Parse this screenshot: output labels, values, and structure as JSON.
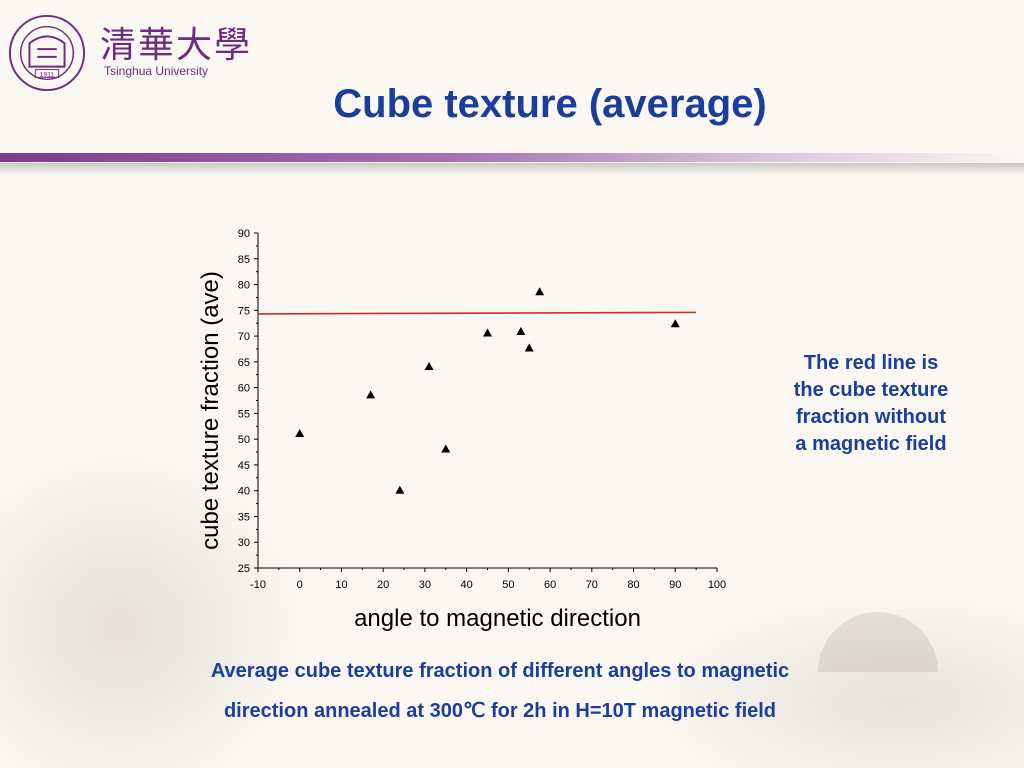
{
  "header": {
    "logo_text_cn": "清華大學",
    "logo_text_en": "Tsinghua University",
    "seal_year": "1911",
    "seal_ring_text": "TSINGHUA UNIVERSITY",
    "title": "Cube texture (average)"
  },
  "note": {
    "lines": [
      "The red line is",
      "the cube texture",
      "fraction without",
      "a magnetic field"
    ]
  },
  "caption": {
    "line1": "Average cube texture fraction of different angles to  magnetic",
    "line2": "direction annealed at 300℃ for  2h in H=10T magnetic field"
  },
  "colors": {
    "title": "#1b3d9c",
    "accent_purple": "#7d3b8e",
    "reference_line": "#d22b2b",
    "marker": "#000000"
  },
  "chart_data": {
    "type": "scatter",
    "title": "",
    "xlabel": "angle to magnetic direction",
    "ylabel": "cube texture fraction (ave)",
    "xlim": [
      -10,
      100
    ],
    "ylim": [
      25,
      90
    ],
    "x_ticks": [
      -10,
      0,
      10,
      20,
      30,
      40,
      50,
      60,
      70,
      80,
      90,
      100
    ],
    "y_ticks": [
      25,
      30,
      35,
      40,
      45,
      50,
      55,
      60,
      65,
      70,
      75,
      80,
      85,
      90
    ],
    "grid": false,
    "marker": "triangle",
    "points": [
      {
        "x": 0,
        "y": 51
      },
      {
        "x": 17,
        "y": 58.5
      },
      {
        "x": 24,
        "y": 40
      },
      {
        "x": 31,
        "y": 64
      },
      {
        "x": 35,
        "y": 48
      },
      {
        "x": 45,
        "y": 70.5
      },
      {
        "x": 53,
        "y": 70.8
      },
      {
        "x": 55,
        "y": 67.6
      },
      {
        "x": 57.5,
        "y": 78.5
      },
      {
        "x": 90,
        "y": 72.3
      }
    ],
    "reference_line": {
      "x": [
        -10,
        95
      ],
      "y": [
        74.3,
        74.6
      ]
    }
  }
}
